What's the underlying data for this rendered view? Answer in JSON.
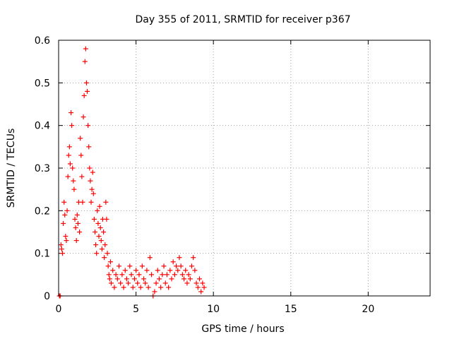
{
  "chart_data": {
    "type": "scatter",
    "title": "Day 355 of 2011, SRMTID for receiver p367",
    "xlabel": "GPS time / hours",
    "ylabel": "SRMTID / TECUs",
    "xlim": [
      0,
      24
    ],
    "ylim": [
      0,
      0.6
    ],
    "xticks": [
      0,
      5,
      10,
      15,
      20
    ],
    "yticks": [
      0,
      0.1,
      0.2,
      0.3,
      0.4,
      0.5,
      0.6
    ],
    "xtick_labels": [
      "0",
      "5",
      "10",
      "15",
      "20"
    ],
    "ytick_labels": [
      "0",
      "0.1",
      "0.2",
      "0.3",
      "0.4",
      "0.5",
      "0.6"
    ],
    "grid": true,
    "marker": "+",
    "color": "#ff0000",
    "series": [
      {
        "name": "SRMTID",
        "points": [
          [
            0.05,
            0.0
          ],
          [
            0.1,
            0.0
          ],
          [
            0.15,
            0.12
          ],
          [
            0.2,
            0.11
          ],
          [
            0.25,
            0.1
          ],
          [
            0.3,
            0.17
          ],
          [
            0.35,
            0.22
          ],
          [
            0.4,
            0.19
          ],
          [
            0.45,
            0.14
          ],
          [
            0.5,
            0.13
          ],
          [
            0.55,
            0.2
          ],
          [
            0.6,
            0.28
          ],
          [
            0.65,
            0.33
          ],
          [
            0.7,
            0.35
          ],
          [
            0.75,
            0.31
          ],
          [
            0.8,
            0.43
          ],
          [
            0.85,
            0.4
          ],
          [
            0.9,
            0.3
          ],
          [
            0.95,
            0.27
          ],
          [
            1.0,
            0.25
          ],
          [
            1.05,
            0.18
          ],
          [
            1.1,
            0.16
          ],
          [
            1.15,
            0.13
          ],
          [
            1.2,
            0.19
          ],
          [
            1.25,
            0.17
          ],
          [
            1.3,
            0.22
          ],
          [
            1.35,
            0.15
          ],
          [
            1.4,
            0.37
          ],
          [
            1.45,
            0.33
          ],
          [
            1.5,
            0.28
          ],
          [
            1.55,
            0.22
          ],
          [
            1.6,
            0.42
          ],
          [
            1.65,
            0.47
          ],
          [
            1.7,
            0.55
          ],
          [
            1.75,
            0.58
          ],
          [
            1.8,
            0.5
          ],
          [
            1.85,
            0.48
          ],
          [
            1.9,
            0.4
          ],
          [
            1.95,
            0.35
          ],
          [
            2.0,
            0.3
          ],
          [
            2.05,
            0.27
          ],
          [
            2.1,
            0.22
          ],
          [
            2.15,
            0.25
          ],
          [
            2.2,
            0.29
          ],
          [
            2.25,
            0.24
          ],
          [
            2.3,
            0.18
          ],
          [
            2.35,
            0.15
          ],
          [
            2.4,
            0.12
          ],
          [
            2.45,
            0.1
          ],
          [
            2.5,
            0.2
          ],
          [
            2.55,
            0.17
          ],
          [
            2.6,
            0.14
          ],
          [
            2.65,
            0.21
          ],
          [
            2.7,
            0.16
          ],
          [
            2.75,
            0.13
          ],
          [
            2.8,
            0.11
          ],
          [
            2.85,
            0.18
          ],
          [
            2.9,
            0.15
          ],
          [
            2.95,
            0.09
          ],
          [
            3.0,
            0.12
          ],
          [
            3.05,
            0.22
          ],
          [
            3.1,
            0.18
          ],
          [
            3.15,
            0.1
          ],
          [
            3.2,
            0.07
          ],
          [
            3.25,
            0.05
          ],
          [
            3.3,
            0.04
          ],
          [
            3.35,
            0.08
          ],
          [
            3.4,
            0.03
          ],
          [
            3.5,
            0.06
          ],
          [
            3.6,
            0.02
          ],
          [
            3.7,
            0.05
          ],
          [
            3.8,
            0.04
          ],
          [
            3.9,
            0.07
          ],
          [
            4.0,
            0.03
          ],
          [
            4.1,
            0.05
          ],
          [
            4.2,
            0.02
          ],
          [
            4.3,
            0.06
          ],
          [
            4.4,
            0.04
          ],
          [
            4.5,
            0.03
          ],
          [
            4.6,
            0.07
          ],
          [
            4.7,
            0.05
          ],
          [
            4.8,
            0.02
          ],
          [
            4.9,
            0.04
          ],
          [
            5.0,
            0.06
          ],
          [
            5.1,
            0.03
          ],
          [
            5.2,
            0.05
          ],
          [
            5.3,
            0.02
          ],
          [
            5.4,
            0.07
          ],
          [
            5.5,
            0.04
          ],
          [
            5.6,
            0.03
          ],
          [
            5.7,
            0.06
          ],
          [
            5.8,
            0.02
          ],
          [
            5.9,
            0.09
          ],
          [
            6.0,
            0.05
          ],
          [
            6.1,
            0.0
          ],
          [
            6.2,
            0.01
          ],
          [
            6.3,
            0.03
          ],
          [
            6.4,
            0.06
          ],
          [
            6.5,
            0.04
          ],
          [
            6.6,
            0.02
          ],
          [
            6.7,
            0.05
          ],
          [
            6.8,
            0.07
          ],
          [
            6.9,
            0.03
          ],
          [
            7.0,
            0.05
          ],
          [
            7.1,
            0.02
          ],
          [
            7.2,
            0.06
          ],
          [
            7.3,
            0.04
          ],
          [
            7.4,
            0.08
          ],
          [
            7.5,
            0.05
          ],
          [
            7.6,
            0.07
          ],
          [
            7.7,
            0.06
          ],
          [
            7.8,
            0.09
          ],
          [
            7.9,
            0.07
          ],
          [
            8.0,
            0.05
          ],
          [
            8.1,
            0.04
          ],
          [
            8.2,
            0.06
          ],
          [
            8.3,
            0.03
          ],
          [
            8.4,
            0.05
          ],
          [
            8.5,
            0.04
          ],
          [
            8.6,
            0.07
          ],
          [
            8.7,
            0.09
          ],
          [
            8.8,
            0.06
          ],
          [
            8.9,
            0.03
          ],
          [
            9.0,
            0.02
          ],
          [
            9.1,
            0.04
          ],
          [
            9.2,
            0.01
          ],
          [
            9.3,
            0.03
          ],
          [
            9.4,
            0.02
          ]
        ]
      }
    ]
  }
}
